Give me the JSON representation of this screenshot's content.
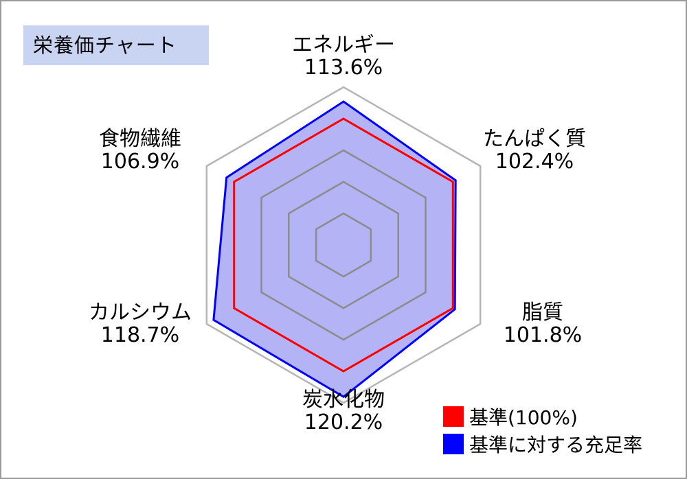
{
  "title": "栄養価チャート",
  "chart_data": {
    "type": "radar",
    "axes": [
      {
        "name": "エネルギー",
        "value_label": "113.6%"
      },
      {
        "name": "たんぱく質",
        "value_label": "102.4%"
      },
      {
        "name": "脂質",
        "value_label": "101.8%"
      },
      {
        "name": "炭水化物",
        "value_label": "120.2%"
      },
      {
        "name": "カルシウム",
        "value_label": "118.7%"
      },
      {
        "name": "食物繊維",
        "value_label": "106.9%"
      }
    ],
    "series": [
      {
        "name": "基準(100%)",
        "values": [
          100,
          100,
          100,
          100,
          100,
          100
        ],
        "color": "#ff0000"
      },
      {
        "name": "基準に対する充足率",
        "values": [
          113.6,
          102.4,
          101.8,
          120.2,
          118.7,
          106.9
        ],
        "color": "#0000ff"
      }
    ],
    "grid_levels": [
      25,
      50,
      75,
      100,
      125
    ],
    "max": 125,
    "fill_color": "#b3b3f5",
    "grid_color": "#8c8c8c",
    "legend_position": "bottom-right"
  }
}
